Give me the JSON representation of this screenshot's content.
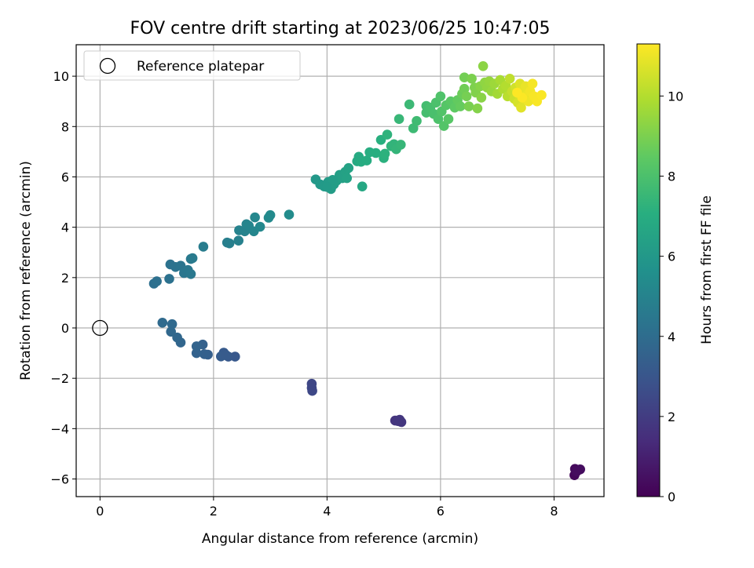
{
  "chart_data": {
    "type": "scatter",
    "title": "FOV centre drift starting at 2023/06/25 10:47:05",
    "xlabel": "Angular distance from reference (arcmin)",
    "ylabel": "Rotation from reference (arcmin)",
    "xlim": [
      -0.42,
      8.88
    ],
    "ylim": [
      -6.7,
      11.25
    ],
    "xticks": [
      0,
      2,
      4,
      6,
      8
    ],
    "xtick_labels": [
      "0",
      "2",
      "4",
      "6",
      "8"
    ],
    "yticks": [
      -6,
      -4,
      -2,
      0,
      2,
      4,
      6,
      8,
      10
    ],
    "ytick_labels": [
      "−6",
      "−4",
      "−2",
      "0",
      "2",
      "4",
      "6",
      "8",
      "10"
    ],
    "grid": true,
    "legend": {
      "position": "top-left",
      "entries": [
        "Reference platepar"
      ]
    },
    "reference_point": {
      "x": 0,
      "y": 0
    },
    "colorbar": {
      "label": "Hours from first FF file",
      "colormap": "viridis",
      "range": [
        0,
        11.3
      ],
      "ticks": [
        0,
        2,
        4,
        6,
        8,
        10
      ],
      "tick_labels": [
        "0",
        "2",
        "4",
        "6",
        "8",
        "10"
      ]
    },
    "points": [
      [
        8.36,
        -5.85,
        0.2
      ],
      [
        8.37,
        -5.6,
        0.3
      ],
      [
        8.46,
        -5.62,
        0.4
      ],
      [
        8.4,
        -5.7,
        0.35
      ],
      [
        5.2,
        -3.68,
        1.7
      ],
      [
        5.28,
        -3.65,
        1.75
      ],
      [
        5.31,
        -3.74,
        1.8
      ],
      [
        5.25,
        -3.7,
        1.78
      ],
      [
        3.73,
        -2.22,
        2.4
      ],
      [
        3.74,
        -2.5,
        2.45
      ],
      [
        3.73,
        -2.38,
        2.42
      ],
      [
        2.38,
        -1.14,
        3.1
      ],
      [
        2.26,
        -1.14,
        3.15
      ],
      [
        2.18,
        -0.98,
        3.2
      ],
      [
        2.13,
        -1.13,
        3.25
      ],
      [
        2.22,
        -1.08,
        3.22
      ],
      [
        1.9,
        -1.06,
        3.4
      ],
      [
        1.84,
        -1.04,
        3.45
      ],
      [
        1.81,
        -0.66,
        3.5
      ],
      [
        1.7,
        -1.0,
        3.55
      ],
      [
        1.7,
        -0.73,
        3.6
      ],
      [
        1.42,
        -0.58,
        3.7
      ],
      [
        1.36,
        -0.38,
        3.75
      ],
      [
        1.25,
        -0.15,
        3.8
      ],
      [
        1.27,
        0.15,
        3.85
      ],
      [
        1.1,
        0.21,
        3.9
      ],
      [
        0.95,
        1.76,
        4.1
      ],
      [
        1.0,
        1.85,
        4.15
      ],
      [
        1.22,
        1.95,
        4.2
      ],
      [
        1.24,
        2.52,
        4.25
      ],
      [
        1.33,
        2.42,
        4.3
      ],
      [
        1.42,
        2.47,
        4.35
      ],
      [
        1.48,
        2.18,
        4.4
      ],
      [
        1.55,
        2.3,
        4.45
      ],
      [
        1.6,
        2.14,
        4.5
      ],
      [
        1.6,
        2.74,
        4.55
      ],
      [
        1.63,
        2.77,
        4.6
      ],
      [
        1.82,
        3.23,
        4.7
      ],
      [
        2.24,
        3.39,
        4.8
      ],
      [
        2.28,
        3.36,
        4.85
      ],
      [
        2.44,
        3.47,
        4.9
      ],
      [
        2.45,
        3.88,
        4.95
      ],
      [
        2.55,
        3.84,
        5.0
      ],
      [
        2.58,
        4.12,
        5.05
      ],
      [
        2.62,
        4.06,
        5.1
      ],
      [
        2.71,
        3.84,
        5.15
      ],
      [
        2.73,
        4.39,
        5.2
      ],
      [
        2.82,
        4.02,
        5.25
      ],
      [
        2.97,
        4.38,
        5.3
      ],
      [
        3.0,
        4.48,
        5.35
      ],
      [
        3.33,
        4.5,
        5.4
      ],
      [
        3.8,
        5.9,
        6.0
      ],
      [
        3.88,
        5.7,
        6.05
      ],
      [
        3.95,
        5.62,
        6.1
      ],
      [
        4.02,
        5.8,
        6.15
      ],
      [
        4.07,
        5.52,
        6.2
      ],
      [
        4.12,
        5.7,
        6.25
      ],
      [
        4.17,
        5.85,
        6.3
      ],
      [
        4.22,
        6.08,
        6.35
      ],
      [
        4.27,
        5.95,
        6.4
      ],
      [
        4.32,
        6.2,
        6.45
      ],
      [
        4.38,
        6.35,
        6.5
      ],
      [
        4.35,
        5.95,
        6.48
      ],
      [
        4.1,
        5.88,
        6.22
      ],
      [
        4.0,
        5.6,
        6.12
      ],
      [
        4.62,
        5.62,
        6.7
      ],
      [
        4.53,
        6.62,
        6.8
      ],
      [
        4.56,
        6.8,
        6.85
      ],
      [
        4.6,
        6.6,
        6.9
      ],
      [
        4.7,
        6.65,
        6.95
      ],
      [
        4.75,
        6.98,
        7.0
      ],
      [
        4.86,
        6.95,
        7.05
      ],
      [
        4.95,
        7.47,
        7.1
      ],
      [
        5.0,
        6.75,
        7.15
      ],
      [
        5.02,
        6.92,
        7.2
      ],
      [
        5.06,
        7.68,
        7.25
      ],
      [
        5.13,
        7.22,
        7.3
      ],
      [
        5.18,
        7.3,
        7.35
      ],
      [
        5.22,
        7.1,
        7.4
      ],
      [
        5.3,
        7.28,
        7.45
      ],
      [
        5.27,
        8.3,
        7.5
      ],
      [
        5.45,
        8.88,
        7.6
      ],
      [
        5.52,
        7.93,
        7.65
      ],
      [
        5.58,
        8.22,
        7.7
      ],
      [
        5.75,
        8.82,
        7.8
      ],
      [
        5.75,
        8.55,
        7.85
      ],
      [
        5.82,
        8.75,
        7.9
      ],
      [
        5.88,
        8.5,
        7.95
      ],
      [
        5.92,
        8.95,
        8.0
      ],
      [
        5.96,
        8.3,
        8.05
      ],
      [
        6.0,
        9.2,
        8.1
      ],
      [
        6.02,
        8.6,
        8.15
      ],
      [
        6.06,
        8.02,
        8.2
      ],
      [
        6.1,
        8.85,
        8.25
      ],
      [
        6.14,
        8.3,
        8.3
      ],
      [
        6.18,
        9.0,
        8.35
      ],
      [
        6.25,
        8.75,
        8.45
      ],
      [
        6.3,
        9.05,
        8.55
      ],
      [
        6.35,
        8.8,
        8.6
      ],
      [
        6.38,
        9.3,
        8.7
      ],
      [
        6.42,
        9.5,
        8.8
      ],
      [
        6.42,
        9.95,
        8.85
      ],
      [
        6.46,
        9.2,
        8.9
      ],
      [
        6.5,
        8.8,
        8.95
      ],
      [
        6.55,
        9.9,
        9.0
      ],
      [
        6.6,
        9.55,
        9.05
      ],
      [
        6.62,
        9.35,
        9.1
      ],
      [
        6.65,
        8.72,
        9.15
      ],
      [
        6.7,
        9.6,
        9.2
      ],
      [
        6.72,
        9.15,
        9.25
      ],
      [
        6.75,
        10.4,
        9.3
      ],
      [
        6.78,
        9.75,
        9.35
      ],
      [
        6.82,
        9.55,
        9.4
      ],
      [
        6.86,
        9.8,
        9.45
      ],
      [
        6.9,
        9.4,
        9.5
      ],
      [
        6.95,
        9.7,
        9.6
      ],
      [
        7.0,
        9.3,
        9.7
      ],
      [
        7.05,
        9.85,
        9.8
      ],
      [
        7.1,
        9.5,
        9.9
      ],
      [
        7.15,
        9.62,
        10.0
      ],
      [
        7.18,
        9.2,
        10.1
      ],
      [
        7.22,
        9.9,
        10.2
      ],
      [
        7.26,
        9.4,
        10.3
      ],
      [
        7.3,
        9.1,
        10.4
      ],
      [
        7.32,
        9.55,
        10.5
      ],
      [
        7.36,
        8.95,
        10.6
      ],
      [
        7.38,
        9.3,
        10.7
      ],
      [
        7.4,
        9.7,
        10.75
      ],
      [
        7.42,
        8.75,
        10.8
      ],
      [
        7.45,
        9.45,
        10.85
      ],
      [
        7.48,
        9.1,
        10.9
      ],
      [
        7.5,
        9.6,
        10.95
      ],
      [
        7.52,
        9.25,
        11.0
      ],
      [
        7.55,
        9.0,
        11.05
      ],
      [
        7.58,
        9.4,
        11.1
      ],
      [
        7.62,
        9.7,
        11.15
      ],
      [
        7.65,
        9.2,
        11.2
      ],
      [
        7.7,
        9.0,
        11.22
      ],
      [
        7.78,
        9.25,
        11.25
      ],
      [
        7.44,
        9.15,
        11.27
      ],
      [
        7.35,
        9.35,
        11.3
      ]
    ]
  }
}
